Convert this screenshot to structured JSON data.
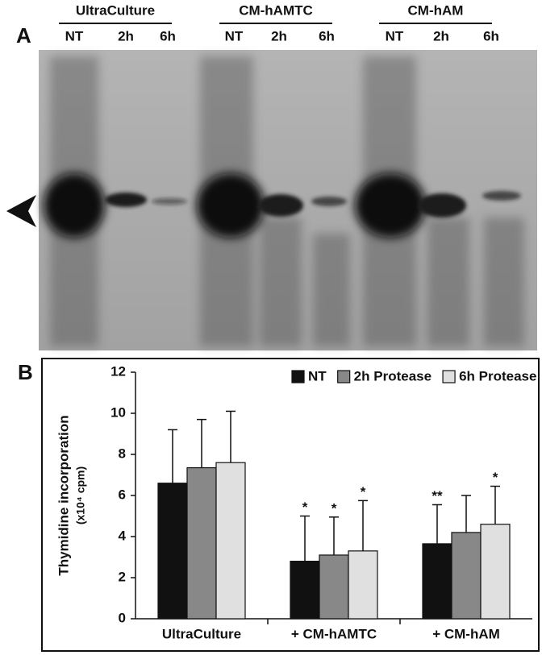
{
  "panels": {
    "a": "A",
    "b": "B"
  },
  "gel": {
    "groups": [
      {
        "name": "UltraCulture",
        "lanes": [
          "NT",
          "2h",
          "6h"
        ]
      },
      {
        "name": "CM-hAMTC",
        "lanes": [
          "NT",
          "2h",
          "6h"
        ]
      },
      {
        "name": "CM-hAM",
        "lanes": [
          "NT",
          "2h",
          "6h"
        ]
      }
    ]
  },
  "chart_data": {
    "type": "bar",
    "y_label": "Thymidine incorporation",
    "y_label_unit": "(x10⁴ cpm)",
    "categories": [
      "UltraCulture",
      "+ CM-hAMTC",
      "+ CM-hAM"
    ],
    "series": [
      {
        "name": "NT",
        "color": "#111111",
        "values": [
          6.6,
          2.8,
          3.65
        ],
        "errors": [
          2.6,
          2.2,
          1.9
        ],
        "annotations": [
          null,
          "*",
          "**"
        ]
      },
      {
        "name": "2h Protease",
        "color": "#888888",
        "values": [
          7.35,
          3.1,
          4.2
        ],
        "errors": [
          2.35,
          1.85,
          1.8
        ],
        "annotations": [
          null,
          "*",
          null
        ]
      },
      {
        "name": "6h Protease",
        "color": "#e0e0e0",
        "values": [
          7.6,
          3.3,
          4.6
        ],
        "errors": [
          2.5,
          2.45,
          1.85
        ],
        "annotations": [
          null,
          "*",
          "*"
        ]
      }
    ],
    "ylim": [
      0,
      12
    ],
    "yticks": [
      0,
      2,
      4,
      6,
      8,
      10,
      12
    ],
    "legend": "top-right"
  }
}
